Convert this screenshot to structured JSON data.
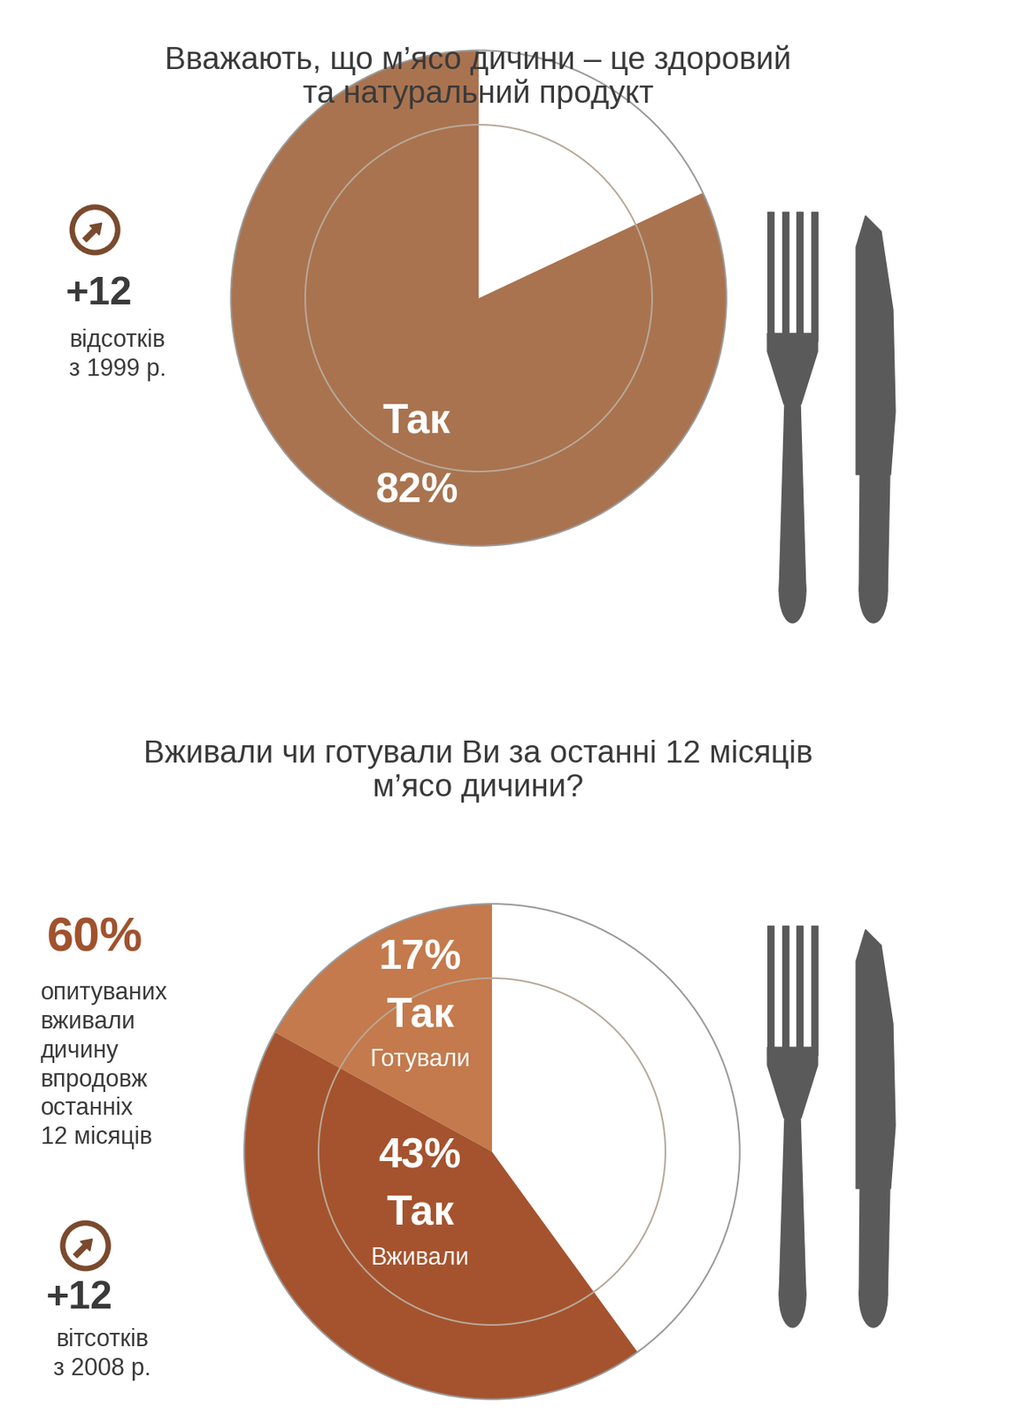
{
  "chart_data": [
    {
      "type": "pie",
      "title": "Вважають, що м’ясо дичини – це здоровий та натуральний продукт",
      "categories": [
        "Так",
        null
      ],
      "values": [
        82,
        18
      ],
      "value_labels": [
        "82%",
        null
      ],
      "colors": [
        "#a9734f",
        "#ffffff"
      ],
      "annotations": [
        "+12",
        "відсотків з 1999 р."
      ]
    },
    {
      "type": "pie",
      "title": "Вживали чи готували Ви за останні 12 місяців м’ясо дичини?",
      "categories": [
        "Так",
        "Так",
        null
      ],
      "sublabels": [
        "Готували",
        "Вживали",
        null
      ],
      "values": [
        17,
        43,
        40
      ],
      "value_labels": [
        "17%",
        "43%",
        null
      ],
      "colors": [
        "#c47a4c",
        "#a5532e",
        "#ffffff"
      ],
      "annotations": [
        "60%",
        "опитуваних вживали дичину впродовж останніх 12 місяців",
        "+12",
        "вітсотків з 2008 р."
      ]
    }
  ]
}
